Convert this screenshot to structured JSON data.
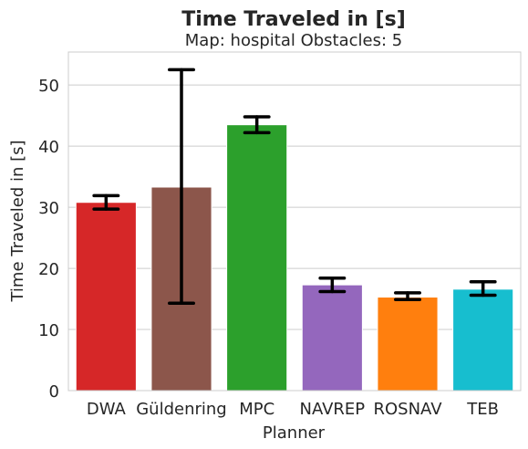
{
  "chart_data": {
    "type": "bar",
    "title": "Time Traveled in [s]",
    "subtitle": "Map: hospital Obstacles: 5",
    "xlabel": "Planner",
    "ylabel": "Time Traveled in [s]",
    "categories": [
      "DWA",
      "Güldenring",
      "MPC",
      "NAVREP",
      "ROSNAV",
      "TEB"
    ],
    "values": [
      30.8,
      33.3,
      43.5,
      17.3,
      15.3,
      16.6
    ],
    "error_low": [
      29.7,
      14.3,
      42.2,
      16.2,
      14.9,
      15.6
    ],
    "error_high": [
      31.9,
      52.5,
      44.8,
      18.4,
      16.0,
      17.8
    ],
    "colors": [
      "#d62728",
      "#8c564b",
      "#2ca02c",
      "#9467bd",
      "#ff7f0e",
      "#17becf"
    ],
    "ylim": [
      0,
      55.4
    ],
    "yticks": [
      0,
      10,
      20,
      30,
      40,
      50
    ],
    "grid": true,
    "legend": "none"
  }
}
